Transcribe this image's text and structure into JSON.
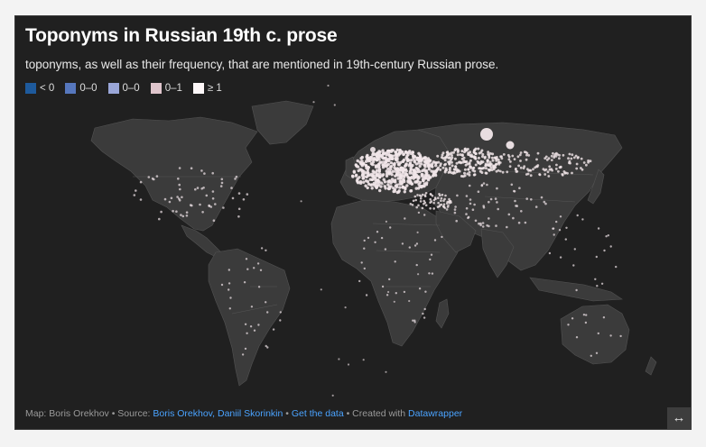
{
  "title": "Toponyms in Russian 19th c. prose",
  "subtitle": "toponyms, as well as their frequency, that are mentioned in 19th-century Russian prose.",
  "legend": [
    {
      "label": "< 0",
      "color": "#1e5a9c"
    },
    {
      "label": "0–0",
      "color": "#5677bd"
    },
    {
      "label": "0–0",
      "color": "#9aa6d8"
    },
    {
      "label": "0–1",
      "color": "#dfc5cc"
    },
    {
      "label": "≥ 1",
      "color": "#fdf7f8"
    }
  ],
  "footer": {
    "map_prefix": "Map: Boris Orekhov • Source: ",
    "source_link": "Boris Orekhov, Daniil Skorinkin",
    "sep1": " • ",
    "data_link": "Get the data",
    "sep2": " • Created with ",
    "tool_link": "Datawrapper"
  },
  "expand_icon": "↔",
  "colors": {
    "background": "#202020",
    "land": "#3b3b3b",
    "borders": "#555555",
    "point": "#f1e6e9"
  }
}
